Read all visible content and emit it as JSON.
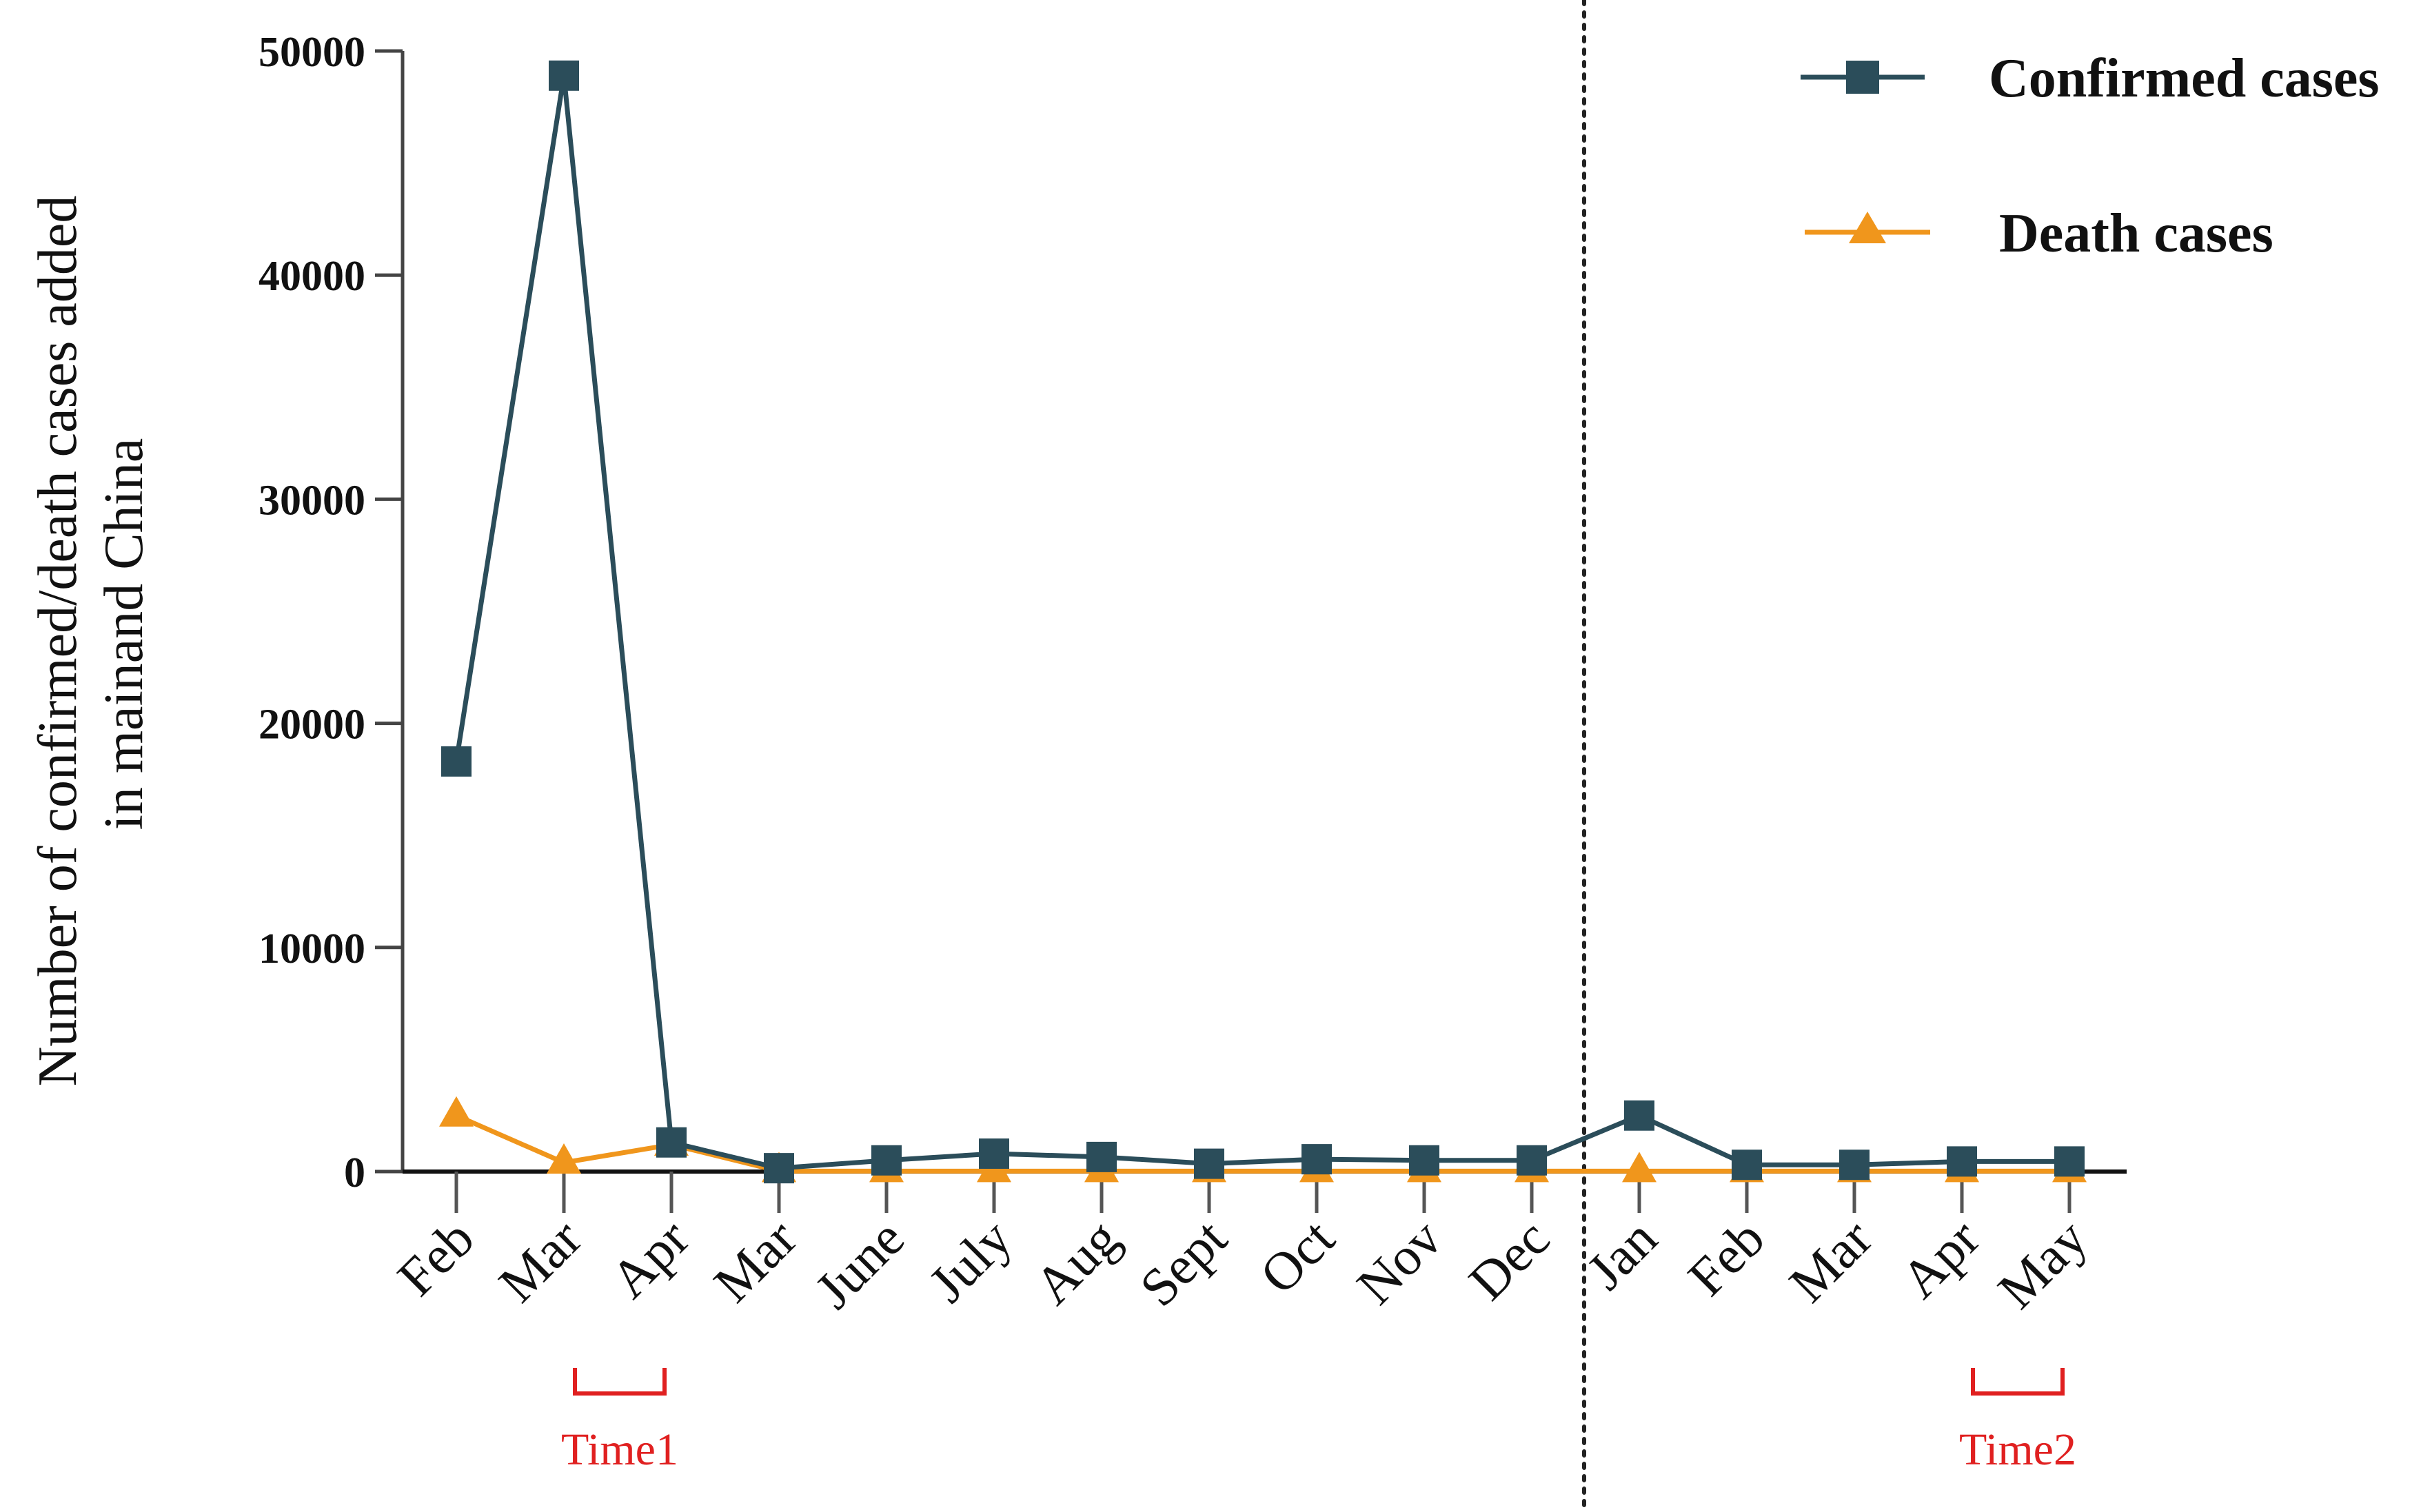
{
  "chart_data": {
    "type": "line",
    "title": "",
    "xlabel": "",
    "ylabel_lines": [
      "Number of confirmed/death cases added",
      "in mainand China"
    ],
    "categories": [
      "Feb",
      "Mar",
      "Apr",
      "Mar",
      "June",
      "July",
      "Aug",
      "Sept",
      "Oct",
      "Nov",
      "Dec",
      "Jan",
      "Feb",
      "Mar",
      "Apr",
      "May"
    ],
    "ylim": [
      0,
      50000
    ],
    "yticks": [
      0,
      10000,
      20000,
      30000,
      40000,
      50000
    ],
    "ytick_labels": [
      "0",
      "10000",
      "20000",
      "30000",
      "40000",
      "50000"
    ],
    "series": [
      {
        "name": "Confirmed cases",
        "color": "#2b4d5a",
        "marker": "square",
        "values": [
          18300,
          48900,
          1300,
          150,
          500,
          800,
          650,
          350,
          550,
          500,
          500,
          2500,
          300,
          300,
          450,
          450
        ]
      },
      {
        "name": "Death cases",
        "color": "#f0961c",
        "marker": "triangle",
        "values": [
          2500,
          400,
          1200,
          20,
          20,
          20,
          20,
          20,
          20,
          20,
          20,
          20,
          20,
          20,
          20,
          20
        ]
      }
    ],
    "legend_position": "top-right",
    "grid": false,
    "divider_after_category_index": 10,
    "annotations": [
      {
        "label": "Time1",
        "from_index": 1,
        "to_index": 2,
        "color": "#e02020"
      },
      {
        "label": "Time2",
        "from_index": 14,
        "to_index": 15,
        "color": "#e02020"
      }
    ]
  }
}
